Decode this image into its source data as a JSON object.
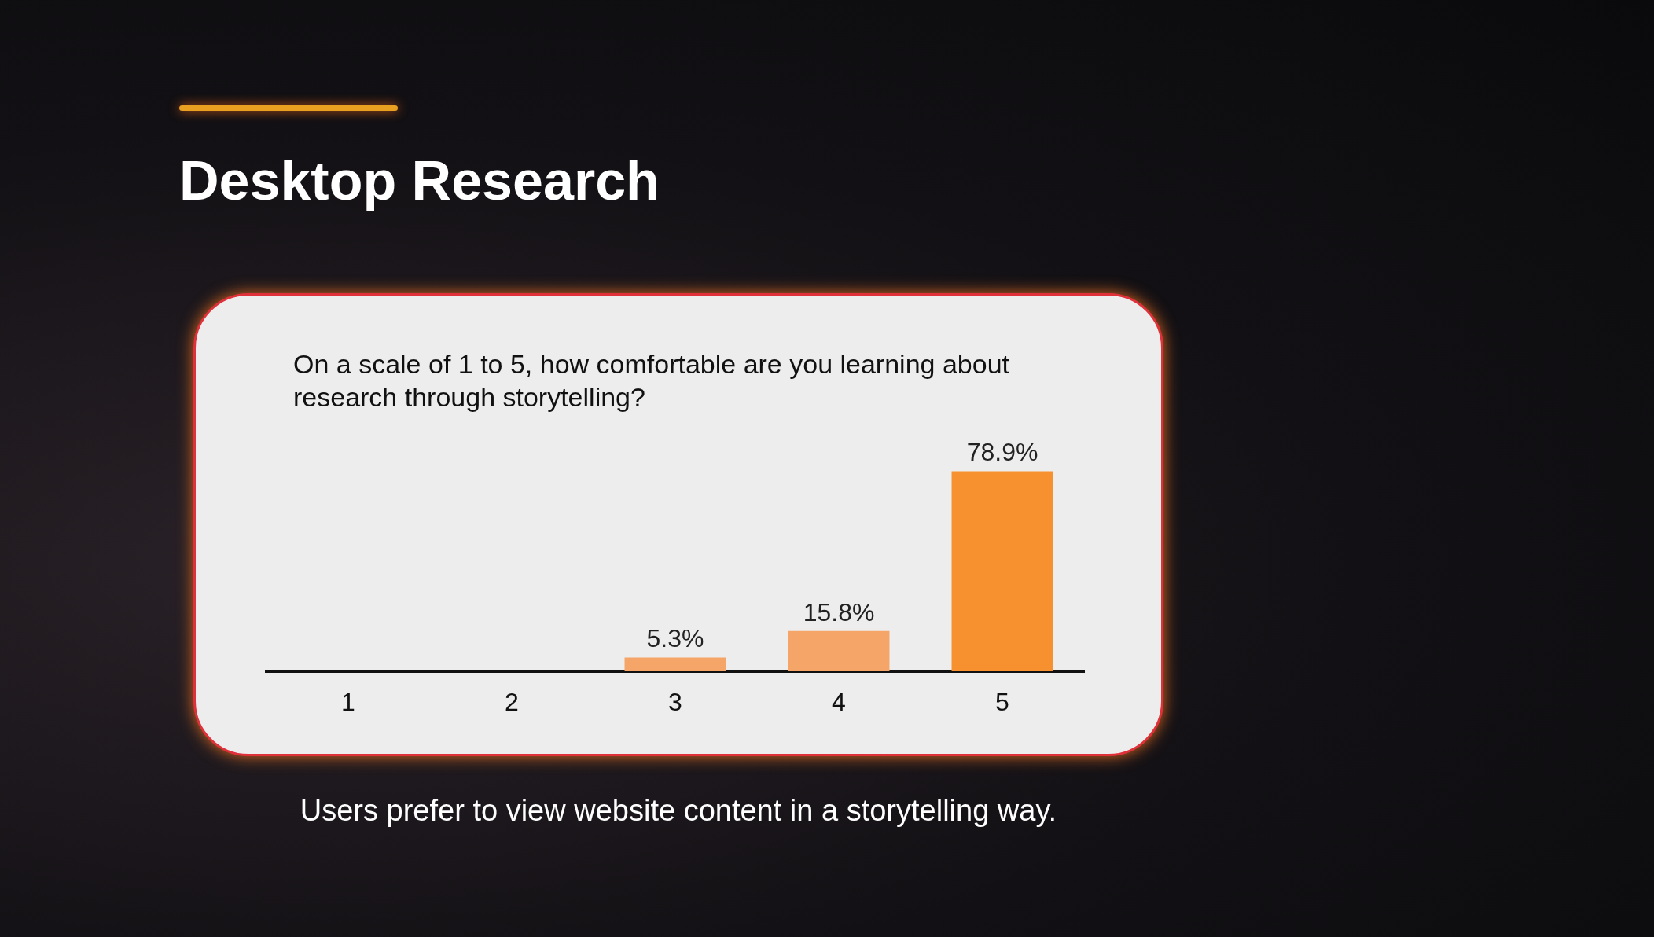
{
  "chart_data": {
    "type": "bar",
    "title": "Desktop Research",
    "subtitle": "On a scale of 1 to 5, how comfortable are you learning about research through storytelling?",
    "annotations": [
      "Users prefer to view website content in a storytelling way."
    ],
    "categories": [
      "1",
      "2",
      "3",
      "4",
      "5"
    ],
    "values": [
      0,
      0,
      5.3,
      15.8,
      78.9
    ],
    "colors": [
      "#f7912f",
      "#f7912f",
      "#f5a567",
      "#f5a567",
      "#f7912f"
    ],
    "value_labels": [
      null,
      null,
      "5.3%",
      "15.8%",
      "78.9%"
    ],
    "grid": false,
    "legend": false,
    "tick_labels": "x"
  }
}
